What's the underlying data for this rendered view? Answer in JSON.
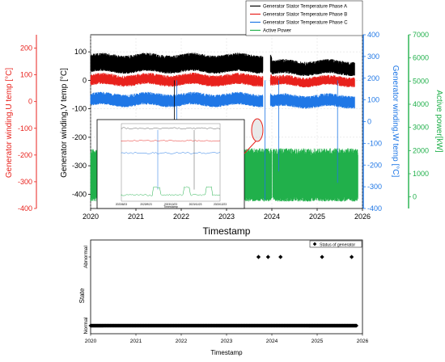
{
  "chart_data": [
    {
      "type": "line",
      "xlabel": "Timestamp",
      "x_ticks": [
        "2020",
        "2021",
        "2022",
        "2023",
        "2024",
        "2025",
        "2026"
      ],
      "xlim": [
        "2020-01-01",
        "2026-01-01"
      ],
      "axes": {
        "u_temp": {
          "label": "Generator winding,U temp [°C]",
          "range": [
            -400,
            250
          ],
          "ticks": [
            "200",
            "100",
            "0",
            "-100",
            "-200",
            "-300",
            "-400"
          ],
          "color": "#e8211c"
        },
        "v_temp": {
          "label": "Generator winding,V temp [°C]",
          "range": [
            -450,
            160
          ],
          "ticks": [
            "100",
            "0",
            "-100",
            "-200",
            "-300",
            "-400"
          ],
          "color": "#000000"
        },
        "w_temp": {
          "label": "Generator winding,W temp [°C]",
          "range": [
            -400,
            400
          ],
          "ticks": [
            "400",
            "300",
            "200",
            "100",
            "0",
            "-100",
            "-200",
            "-300",
            "-400"
          ],
          "color": "#1f77e6"
        },
        "power": {
          "label": "Active power[kW]",
          "range": [
            -500,
            7000
          ],
          "ticks": [
            "7000",
            "6000",
            "5000",
            "4000",
            "3000",
            "2000",
            "1000",
            "0"
          ],
          "color": "#21b04b"
        }
      },
      "legend_position": "top-right",
      "series": [
        {
          "name": "Generator Stator Temperature Phase A",
          "color": "#000000",
          "axis": "v_temp",
          "band": [
            38,
            82
          ],
          "after_2024_band": [
            30,
            60
          ]
        },
        {
          "name": "Generator Stator Temperature Phase B",
          "color": "#e8211c",
          "axis": "v_temp",
          "band": [
            -8,
            12
          ],
          "after_2024_band": [
            -10,
            5
          ]
        },
        {
          "name": "Generator Stator Temperature Phase C",
          "color": "#1f77e6",
          "axis": "v_temp",
          "band": [
            -80,
            -55
          ],
          "after_2024_band": [
            -85,
            -60
          ]
        },
        {
          "name": "Active Power",
          "color": "#21b04b",
          "axis": "power",
          "band": [
            0,
            2100
          ]
        }
      ],
      "gap": [
        "2023-10-20",
        "2023-12-20"
      ],
      "inset": {
        "x_ticks": [
          "2023/8/23",
          "2023/9/23",
          "2023/10/23",
          "2023/11/23",
          "2023/12/23"
        ]
      }
    },
    {
      "type": "scatter",
      "xlabel": "Timestamp",
      "ylabel": "State",
      "x_ticks": [
        "2020",
        "2021",
        "2022",
        "2023",
        "2024",
        "2025",
        "2026"
      ],
      "xlim": [
        "2020-01-01",
        "2026-01-01"
      ],
      "y_categories": [
        "Normal",
        "Abnormal"
      ],
      "legend": "Status of generator",
      "legend_position": "top-right",
      "normal_range": [
        "2020-01-01",
        "2025-11-15"
      ],
      "abnormal_dates": [
        "2023-09-15",
        "2023-12-01",
        "2024-03-10",
        "2025-02-10",
        "2025-10-05"
      ]
    }
  ]
}
